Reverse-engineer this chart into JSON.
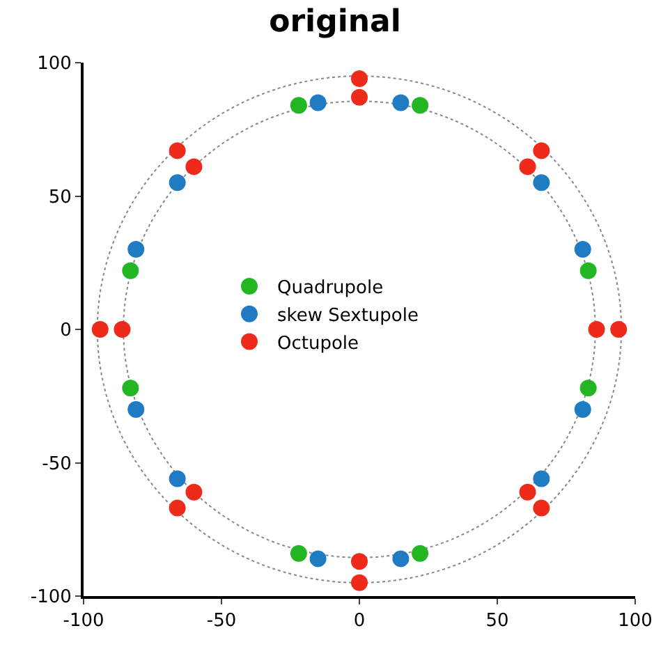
{
  "chart_data": {
    "type": "scatter",
    "title": "original",
    "xlim": [
      -100,
      100
    ],
    "ylim": [
      -100,
      100
    ],
    "xticks": [
      -100,
      -50,
      0,
      50,
      100
    ],
    "yticks": [
      -100,
      -50,
      0,
      50,
      100
    ],
    "grid": false,
    "legend": "center",
    "marker": "circle",
    "series": [
      {
        "name": "Quadrupole",
        "color": "#22b722",
        "x": [
          -22,
          22,
          83,
          83,
          -83,
          -83,
          -22,
          22
        ],
        "values": [
          84,
          84,
          22,
          -22,
          22,
          -22,
          -84,
          -84
        ]
      },
      {
        "name": "skew Sextupole",
        "color": "#1f7cc2",
        "x": [
          -15,
          15,
          81,
          81,
          -81,
          -81,
          -66,
          66,
          -66,
          66,
          -15,
          15
        ],
        "values": [
          85,
          85,
          30,
          -30,
          30,
          -30,
          55,
          55,
          -56,
          -56,
          -86,
          -86
        ]
      },
      {
        "name": "Octupole",
        "color": "#ee2b1b",
        "x": [
          0,
          0,
          94,
          86,
          -94,
          -86,
          0,
          0,
          -66,
          -60,
          66,
          61,
          -66,
          -60,
          66,
          61
        ],
        "values": [
          94,
          87,
          0,
          0,
          0,
          0,
          -87,
          -95,
          67,
          61,
          67,
          61,
          -67,
          -61,
          -67,
          -61
        ]
      }
    ]
  }
}
